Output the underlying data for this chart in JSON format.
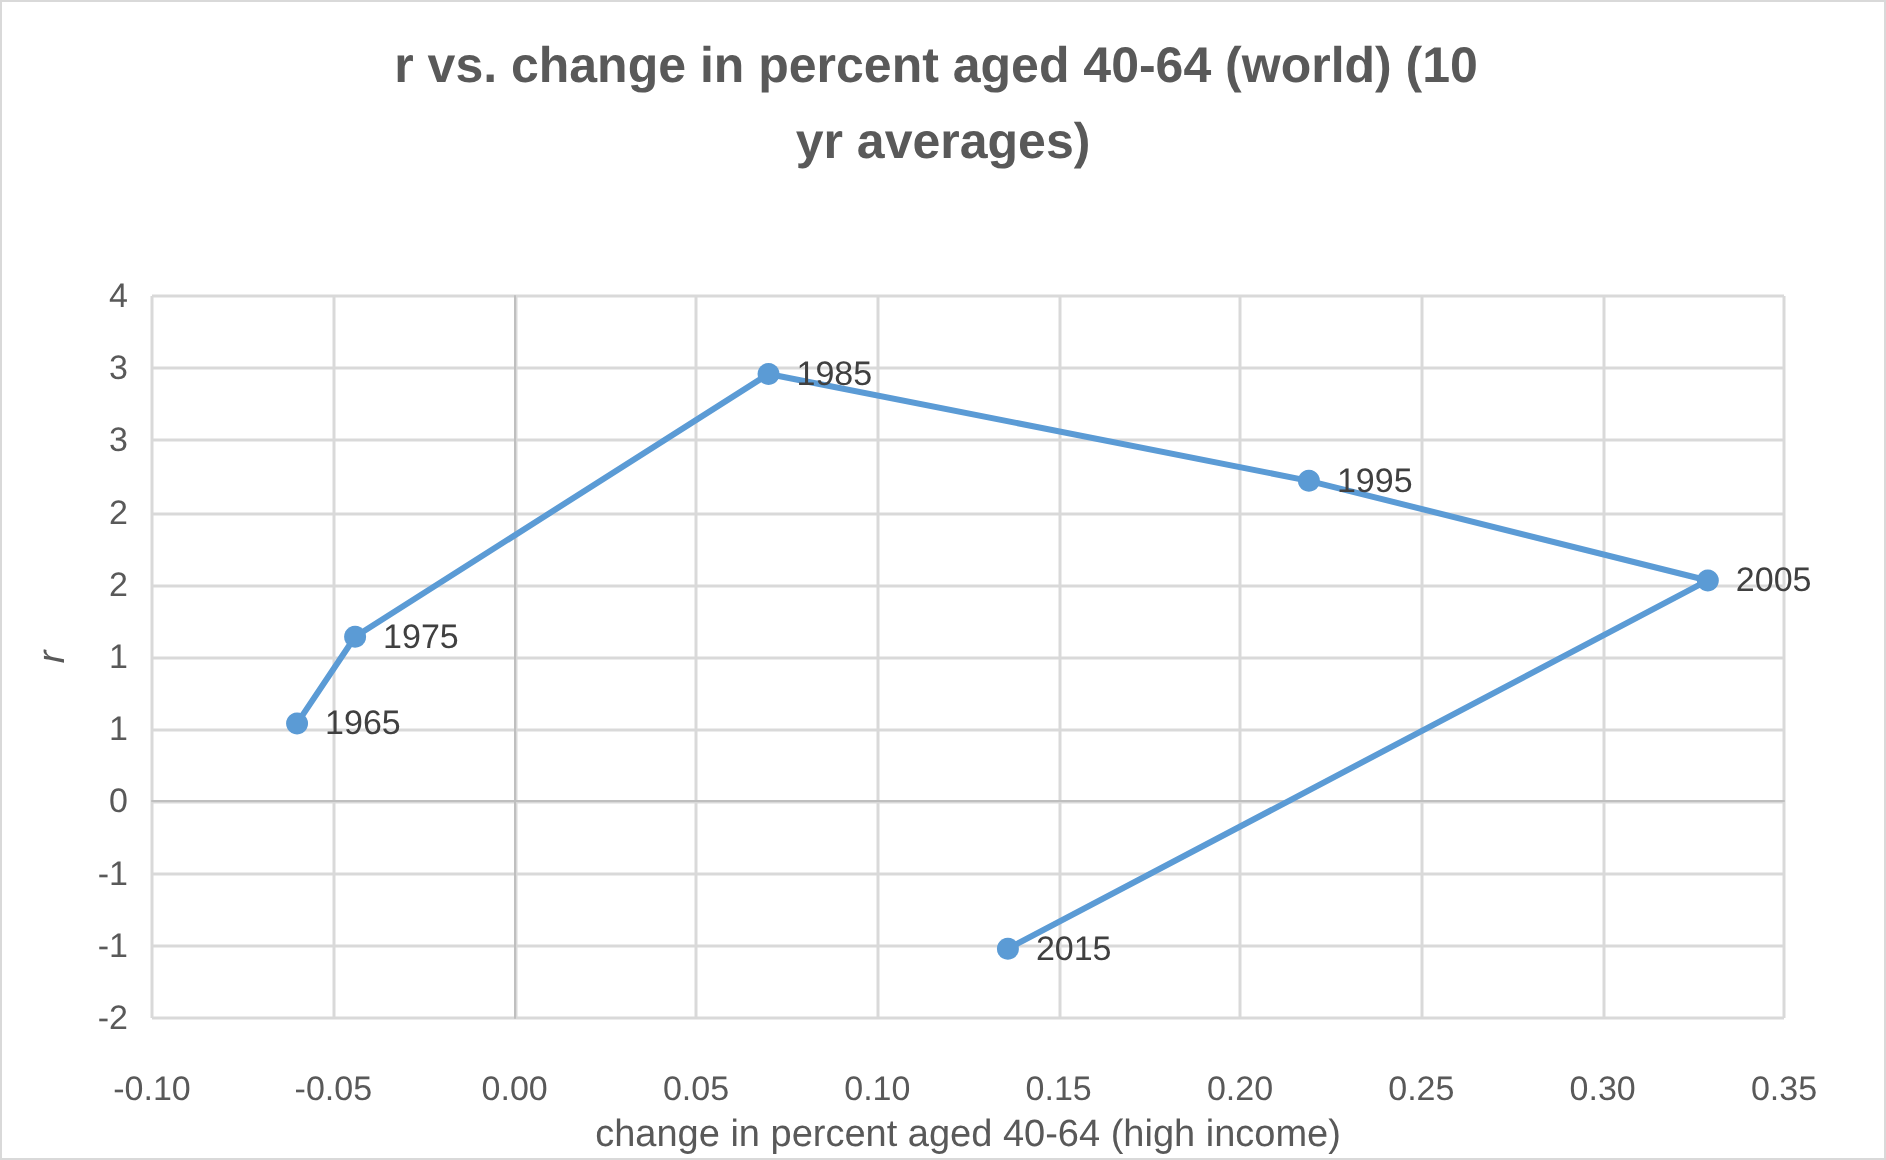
{
  "chart_data": {
    "type": "line",
    "title": "r vs. change in percent aged 40-64 (world) (10 yr averages)",
    "xlabel": "change in percent aged 40-64 (high income)",
    "ylabel": "r",
    "x": [
      -0.06,
      -0.044,
      0.07,
      0.219,
      0.329,
      0.136
    ],
    "series": [
      {
        "color": "#5b9bd5",
        "values": [
          0.54,
          1.14,
          2.96,
          2.22,
          1.53,
          -1.02
        ]
      }
    ],
    "annotations": [
      {
        "text": "1965",
        "x": -0.06,
        "y": 0.54
      },
      {
        "text": "1975",
        "x": -0.044,
        "y": 1.14
      },
      {
        "text": "1985",
        "x": 0.07,
        "y": 2.96
      },
      {
        "text": "1995",
        "x": 0.219,
        "y": 2.22
      },
      {
        "text": "2005",
        "x": 0.329,
        "y": 1.53
      },
      {
        "text": "2015",
        "x": 0.136,
        "y": -1.02
      }
    ],
    "xlim": [
      -0.1,
      0.35
    ],
    "xticks": [
      {
        "value": -0.1,
        "label": "-0.10"
      },
      {
        "value": -0.05,
        "label": "-0.05"
      },
      {
        "value": 0,
        "label": "0.00"
      },
      {
        "value": 0.05,
        "label": "0.05"
      },
      {
        "value": 0.1,
        "label": "0.10"
      },
      {
        "value": 0.15,
        "label": "0.15"
      },
      {
        "value": 0.2,
        "label": "0.20"
      },
      {
        "value": 0.25,
        "label": "0.25"
      },
      {
        "value": 0.3,
        "label": "0.30"
      },
      {
        "value": 0.35,
        "label": "0.35"
      }
    ],
    "ylim": [
      -1.5,
      3.5
    ],
    "yticks": [
      {
        "value": -1.5,
        "label": "-2"
      },
      {
        "value": -1,
        "label": "-1"
      },
      {
        "value": -0.5,
        "label": "-1"
      },
      0,
      {
        "value": 0.5,
        "label": "1"
      },
      1,
      {
        "value": 1.5,
        "label": "2"
      },
      2,
      {
        "value": 2.5,
        "label": "3"
      },
      3,
      {
        "value": 3.5,
        "label": "4"
      }
    ],
    "grid": true,
    "marker": "circle",
    "line_style": "solid"
  }
}
